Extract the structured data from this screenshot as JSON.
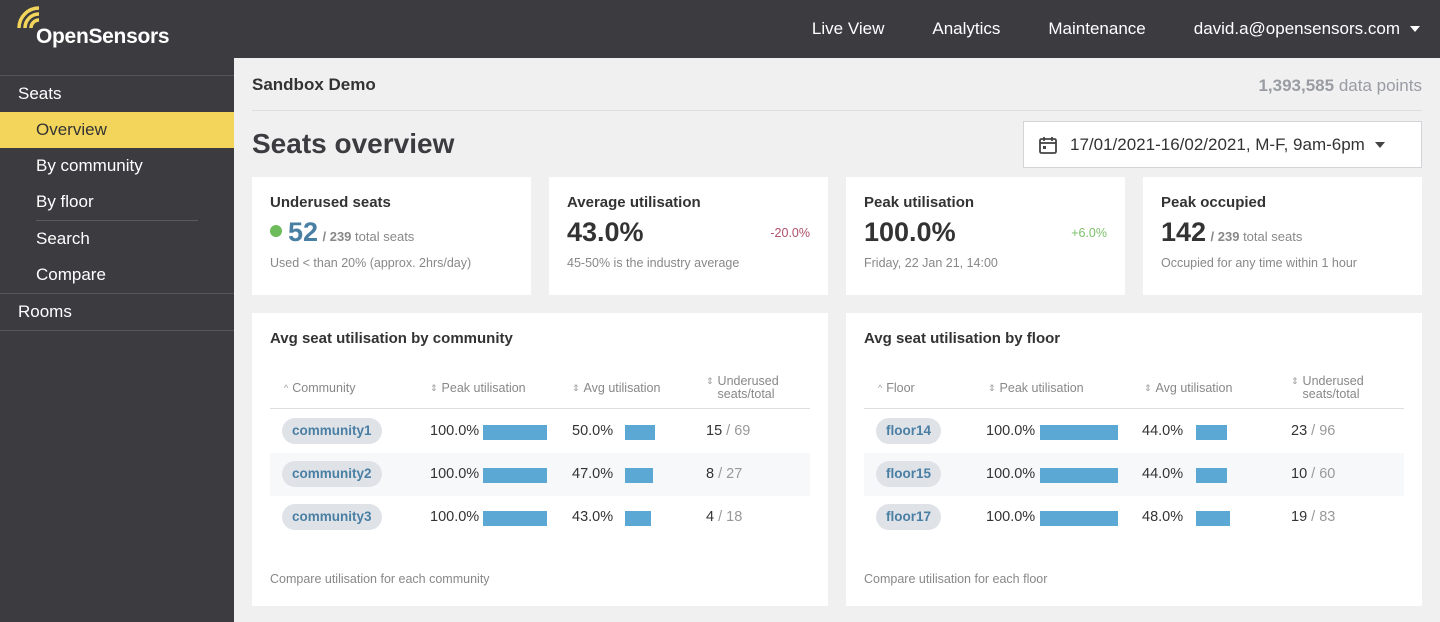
{
  "brand": {
    "name": "OpenSensors",
    "accent": "#f3d55b"
  },
  "nav": {
    "live_view": "Live View",
    "analytics": "Analytics",
    "maintenance": "Maintenance",
    "user": "david.a@opensensors.com"
  },
  "sidebar": {
    "seats": "Seats",
    "items": [
      "Overview",
      "By community",
      "By floor",
      "Search",
      "Compare"
    ],
    "rooms": "Rooms"
  },
  "header": {
    "org": "Sandbox Demo",
    "points_value": "1,393,585",
    "points_label": "data points",
    "title": "Seats overview",
    "date_range": "17/01/2021-16/02/2021, M-F, 9am-6pm"
  },
  "cards": {
    "underused": {
      "title": "Underused seats",
      "value": "52",
      "total": "/ 239",
      "total_label": "total seats",
      "note": "Used < than 20% (approx. 2hrs/day)"
    },
    "avg": {
      "title": "Average utilisation",
      "value": "43.0%",
      "delta": "-20.0%",
      "note": "45-50% is the industry average"
    },
    "peak": {
      "title": "Peak utilisation",
      "value": "100.0%",
      "delta": "+6.0%",
      "note": "Friday, 22 Jan 21, 14:00"
    },
    "occupied": {
      "title": "Peak occupied",
      "value": "142",
      "total": "/ 239",
      "total_label": "total seats",
      "note": "Occupied for any time within 1 hour"
    }
  },
  "community_table": {
    "title": "Avg seat utilisation by community",
    "headers": {
      "name": "Community",
      "peak": "Peak utilisation",
      "avg": "Avg utilisation",
      "under1": "Underused",
      "under2": "seats/total"
    },
    "rows": [
      {
        "name": "community1",
        "peak": "100.0%",
        "peak_frac": 1.0,
        "avg": "50.0%",
        "avg_frac": 0.5,
        "under": "15",
        "total": "/ 69"
      },
      {
        "name": "community2",
        "peak": "100.0%",
        "peak_frac": 1.0,
        "avg": "47.0%",
        "avg_frac": 0.47,
        "under": "8",
        "total": "/ 27"
      },
      {
        "name": "community3",
        "peak": "100.0%",
        "peak_frac": 1.0,
        "avg": "43.0%",
        "avg_frac": 0.43,
        "under": "4",
        "total": "/ 18"
      }
    ],
    "footnote": "Compare utilisation for each community"
  },
  "floor_table": {
    "title": "Avg seat utilisation by floor",
    "headers": {
      "name": "Floor",
      "peak": "Peak utilisation",
      "avg": "Avg utilisation",
      "under1": "Underused",
      "under2": "seats/total"
    },
    "rows": [
      {
        "name": "floor14",
        "peak": "100.0%",
        "peak_frac": 1.0,
        "avg": "44.0%",
        "avg_frac": 0.44,
        "under": "23",
        "total": "/ 96"
      },
      {
        "name": "floor15",
        "peak": "100.0%",
        "peak_frac": 1.0,
        "avg": "44.0%",
        "avg_frac": 0.44,
        "under": "10",
        "total": "/ 60"
      },
      {
        "name": "floor17",
        "peak": "100.0%",
        "peak_frac": 1.0,
        "avg": "48.0%",
        "avg_frac": 0.48,
        "under": "19",
        "total": "/ 83"
      }
    ],
    "footnote": "Compare utilisation for each floor"
  },
  "colors": {
    "negative": "#b0506a",
    "positive": "#7cbf6a",
    "bar": "#5ba8d4"
  }
}
